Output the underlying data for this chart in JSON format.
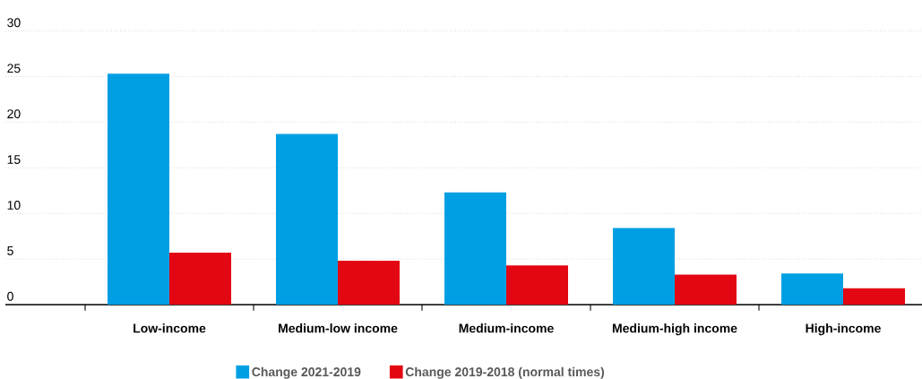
{
  "chart_data": {
    "type": "bar",
    "categories": [
      "Low-income",
      "Medium-low income",
      "Medium-income",
      "Medium-high income",
      "High-income"
    ],
    "series": [
      {
        "name": "Change 2021-2019",
        "color": "#009fe3",
        "values": [
          25.3,
          18.7,
          12.3,
          8.4,
          3.4
        ]
      },
      {
        "name": "Change 2019-2018 (normal times)",
        "color": "#e30613",
        "values": [
          5.7,
          4.8,
          4.3,
          3.3,
          1.8
        ]
      }
    ],
    "ylim": [
      0,
      30
    ],
    "yticks": [
      0,
      5,
      10,
      15,
      20,
      25,
      30
    ],
    "grid": "y",
    "legend": "bottom"
  }
}
